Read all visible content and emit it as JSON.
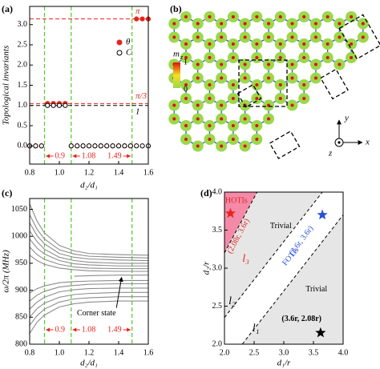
{
  "chart_data": [
    {
      "type": "scatter",
      "label": "(a)",
      "xlabel": "d₂/d₁",
      "ylabel": "Topological invariants",
      "xlim": [
        0.8,
        1.6
      ],
      "ylim": [
        -0.45,
        3.45
      ],
      "xticks": [
        0.8,
        {
          "value": 1,
          "label": "1.0"
        },
        1.2,
        1.4,
        1.6
      ],
      "yticks": [
        {
          "value": 0,
          "label": "0.0"
        },
        0.5,
        {
          "value": 1,
          "label": "1.0"
        },
        1.5,
        {
          "value": 2,
          "label": "2.0"
        },
        2.5,
        {
          "value": 3,
          "label": "3.0"
        }
      ],
      "x": [
        0.8,
        0.84,
        0.88,
        0.92,
        0.96,
        1.0,
        1.04,
        1.08,
        1.12,
        1.16,
        1.2,
        1.24,
        1.28,
        1.32,
        1.36,
        1.4,
        1.44,
        1.48,
        1.52,
        1.56,
        1.6
      ],
      "series": [
        {
          "name": "θ",
          "color": "#e8241c",
          "marker": "filled",
          "values": [
            0,
            0,
            0,
            1.05,
            1.05,
            1.05,
            1.05,
            0,
            0,
            0,
            0,
            0,
            0,
            0,
            0,
            0,
            0,
            0,
            3.14,
            3.14,
            3.14
          ]
        },
        {
          "name": "C",
          "color": "#000000",
          "marker": "open",
          "values": [
            0,
            0,
            0,
            1,
            1,
            1,
            1,
            0,
            0,
            0,
            0,
            0,
            0,
            0,
            0,
            0,
            0,
            0,
            0,
            0,
            0
          ]
        }
      ],
      "hlines": [
        {
          "value": 3.14159,
          "label": "π",
          "color": "#e8241c"
        },
        {
          "value": 1.0472,
          "label": "π/3",
          "color": "#e8241c"
        },
        {
          "value": 1,
          "label": "1",
          "color": "#000000"
        }
      ],
      "vlines": [
        0.9,
        1.08,
        1.49
      ],
      "vline_color": "#5ccc3a",
      "vline_label_color": "#e8241c",
      "legend": "upper right"
    },
    {
      "type": "line",
      "label": "(c)",
      "xlabel": "d₂/d₁",
      "ylabel": "ω/2π (MHz)",
      "xlim": [
        0.8,
        1.6
      ],
      "ylim": [
        800,
        1070
      ],
      "xticks": [
        0.8,
        {
          "value": 1,
          "label": "1.0"
        },
        1.2,
        1.4,
        1.6
      ],
      "yticks": [
        800,
        850,
        900,
        950,
        1000,
        1050
      ],
      "x": [
        0.8,
        0.85,
        0.9,
        1.0,
        1.1,
        1.2,
        1.4,
        1.6
      ],
      "series": [
        {
          "color": "#8c8c8c",
          "values": [
            965,
            955,
            948,
            941,
            938,
            936,
            935,
            935
          ]
        },
        {
          "color": "#8c8c8c",
          "values": [
            980,
            966,
            957,
            948,
            943,
            941,
            940,
            940
          ]
        },
        {
          "color": "#8c8c8c",
          "values": [
            995,
            978,
            967,
            955,
            949,
            947,
            945,
            945
          ]
        },
        {
          "color": "#8c8c8c",
          "values": [
            1010,
            990,
            976,
            961,
            955,
            952,
            950,
            950
          ]
        },
        {
          "color": "#8c8c8c",
          "values": [
            1025,
            1001,
            986,
            968,
            961,
            958,
            956,
            955
          ]
        },
        {
          "color": "#8c8c8c",
          "values": [
            1040,
            1013,
            995,
            975,
            967,
            963,
            961,
            960
          ]
        },
        {
          "color": "#8c8c8c",
          "values": [
            1060,
            1028,
            1006,
            983,
            973,
            968,
            966,
            965
          ]
        },
        {
          "color": "#8c8c8c",
          "values": [
            820,
            841,
            854,
            869,
            875,
            878,
            880,
            880
          ]
        },
        {
          "color": "#8c8c8c",
          "values": [
            835,
            853,
            865,
            878,
            884,
            886,
            888,
            888
          ]
        },
        {
          "color": "#8c8c8c",
          "values": [
            850,
            866,
            876,
            887,
            892,
            894,
            896,
            896
          ]
        },
        {
          "color": "#8c8c8c",
          "values": [
            865,
            878,
            887,
            897,
            901,
            903,
            904,
            904
          ]
        },
        {
          "color": "#8c8c8c",
          "values": [
            880,
            891,
            898,
            906,
            909,
            911,
            912,
            912
          ]
        },
        {
          "color": "#8c8c8c",
          "values": [
            895,
            903,
            908,
            914,
            916,
            917,
            918,
            918
          ]
        },
        {
          "color": "#8c8c8c",
          "values": [
            null,
            null,
            null,
            null,
            926,
            927,
            928,
            928
          ]
        }
      ],
      "vlines": [
        0.9,
        1.08,
        1.49
      ],
      "vline_color": "#5ccc3a",
      "vline_label_color": "#e8241c",
      "annotation": "Corner state"
    },
    {
      "type": "region",
      "label": "(d)",
      "xlabel": "d₁/r",
      "ylabel": "d₂/r",
      "xlim": [
        2,
        4
      ],
      "ylim": [
        2,
        4
      ],
      "xticks": [
        {
          "value": 2,
          "label": "2.0"
        },
        2.5,
        {
          "value": 3,
          "label": "3.0"
        },
        3.5,
        {
          "value": 4,
          "label": "4.0"
        }
      ],
      "yticks": [
        {
          "value": 2,
          "label": "2.0"
        },
        2.5,
        {
          "value": 3,
          "label": "3.0"
        },
        3.5,
        {
          "value": 4,
          "label": "4.0"
        }
      ],
      "lines": [
        {
          "name": "l₁",
          "x": [
            2.3,
            4.0
          ],
          "y": [
            2.0,
            3.7
          ],
          "label_color": "#000000"
        },
        {
          "name": "l₂",
          "x": [
            2.0,
            3.65
          ],
          "y": [
            2.35,
            4.0
          ],
          "label_color": "#000000"
        },
        {
          "name": "l₃",
          "x": [
            2.0,
            2.55
          ],
          "y": [
            3.2,
            4.0
          ],
          "label_color": "#e8241c"
        }
      ],
      "regions": [
        {
          "name": "HOTIs",
          "color": "#f48aa8",
          "label_color": "#e8241c"
        },
        {
          "name": "Trivial",
          "color": "#e6e6e6",
          "label_color": "#000000"
        },
        {
          "name": "FOTIs",
          "color": "#ffffff",
          "label_color": "#2a4fd8"
        },
        {
          "name": "Trivial",
          "color": "#e6e6e6",
          "label_color": "#000000"
        }
      ],
      "points": [
        {
          "x": 2.1,
          "y": 3.72,
          "color": "#e8241c",
          "label": "(2.08r, 3.6r)"
        },
        {
          "x": 3.65,
          "y": 3.7,
          "color": "#2a4fd8",
          "label": "(3.6r, 3.6r)"
        },
        {
          "x": 3.62,
          "y": 2.15,
          "color": "#000000",
          "label": "(3.6r, 2.08r)"
        }
      ]
    }
  ],
  "diagram": {
    "label": "(b)",
    "colorbar_title": {
      "symbol": "m",
      "subscript": "z"
    },
    "colorbar_ticks": [
      1,
      0
    ],
    "colorbar_colors": [
      "#e01010",
      "#f5e020",
      "#9bd84a"
    ],
    "axis_labels": {
      "y": "y",
      "z": "z",
      "x": "x"
    }
  }
}
